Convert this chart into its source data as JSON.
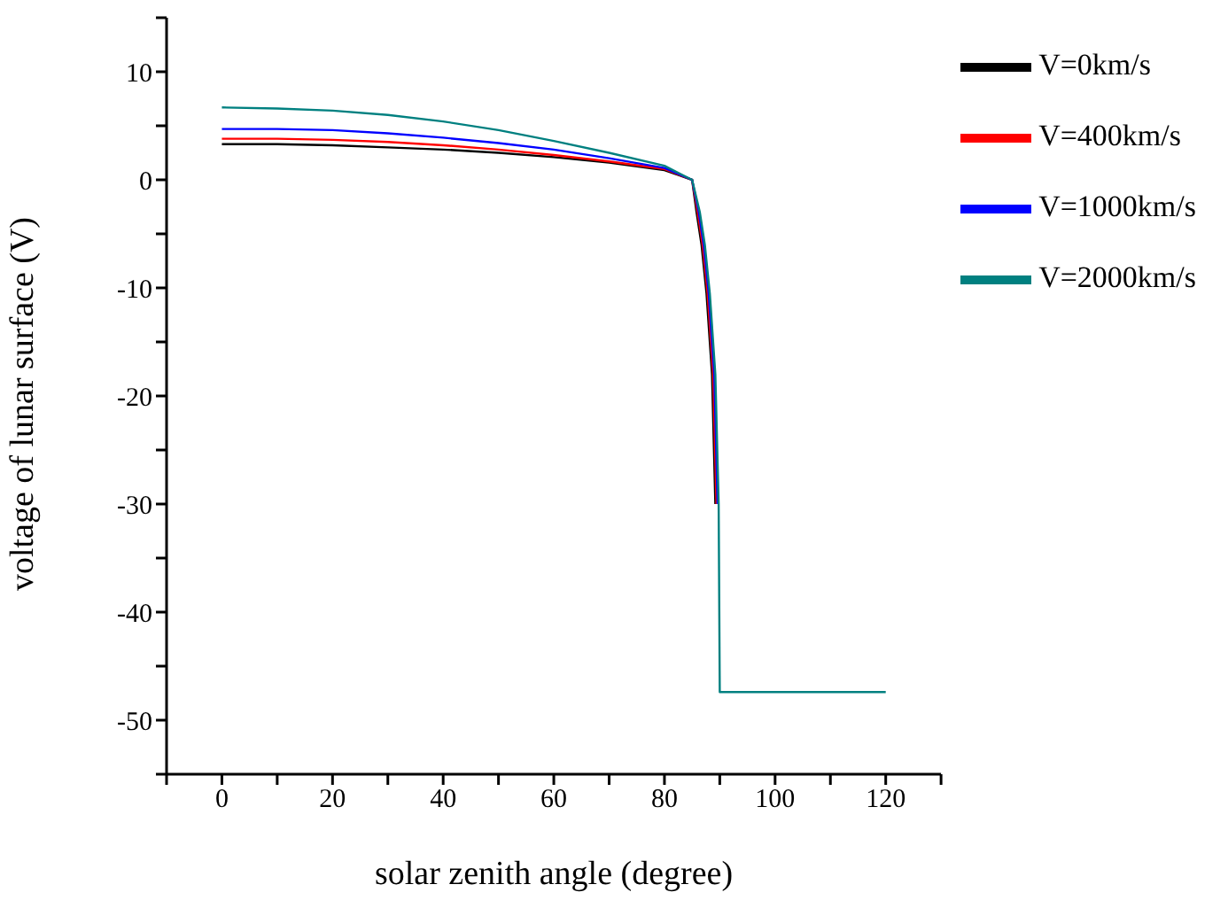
{
  "chart_data": {
    "type": "line",
    "xlabel": "solar zenith angle (degree)",
    "ylabel": "voltage of lunar surface (V)",
    "series": [
      {
        "name": "V=0km/s",
        "color": "#000000",
        "x": [
          0,
          10,
          20,
          30,
          40,
          50,
          60,
          70,
          80,
          85,
          85.8,
          86.7,
          87.6,
          88.6,
          89.2
        ],
        "values": [
          3.3,
          3.3,
          3.2,
          3.0,
          2.8,
          2.5,
          2.1,
          1.6,
          0.9,
          0,
          -3,
          -6,
          -10.5,
          -18,
          -30
        ]
      },
      {
        "name": "V=400km/s",
        "color": "#ff0000",
        "x": [
          0,
          10,
          20,
          30,
          40,
          50,
          60,
          70,
          80,
          85,
          86,
          86.9,
          87.8,
          88.8,
          89.4
        ],
        "values": [
          3.8,
          3.8,
          3.7,
          3.5,
          3.2,
          2.8,
          2.3,
          1.7,
          1.0,
          0,
          -3,
          -6,
          -10.5,
          -18,
          -30
        ]
      },
      {
        "name": "V=1000km/s",
        "color": "#0000ff",
        "x": [
          0,
          10,
          20,
          30,
          40,
          50,
          60,
          70,
          80,
          85,
          86.2,
          87.1,
          88,
          89,
          89.6
        ],
        "values": [
          4.7,
          4.7,
          4.6,
          4.3,
          3.9,
          3.4,
          2.8,
          2.0,
          1.1,
          0,
          -3,
          -6,
          -10.5,
          -18,
          -30
        ]
      },
      {
        "name": "V=2000km/s",
        "color": "#008080",
        "x": [
          0,
          10,
          20,
          30,
          40,
          50,
          60,
          70,
          80,
          85,
          86.4,
          87.3,
          88.2,
          89.2,
          89.8,
          90,
          120
        ],
        "values": [
          6.7,
          6.6,
          6.4,
          6.0,
          5.4,
          4.6,
          3.6,
          2.5,
          1.3,
          0,
          -3,
          -6,
          -10.5,
          -18,
          -30,
          -47.4,
          -47.4
        ]
      }
    ],
    "xlim": [
      -10,
      130
    ],
    "xticks": [
      {
        "value": -10,
        "label": null
      },
      0,
      {
        "value": 10,
        "label": null
      },
      20,
      {
        "value": 30,
        "label": null
      },
      40,
      {
        "value": 50,
        "label": null
      },
      60,
      {
        "value": 70,
        "label": null
      },
      80,
      {
        "value": 90,
        "label": null
      },
      100,
      {
        "value": 110,
        "label": null
      },
      120,
      {
        "value": 130,
        "label": null
      }
    ],
    "ylim": [
      -55,
      15
    ],
    "yticks": [
      {
        "value": -55,
        "label": null
      },
      -50,
      {
        "value": -45,
        "label": null
      },
      -40,
      {
        "value": -35,
        "label": null
      },
      -30,
      {
        "value": -25,
        "label": null
      },
      -20,
      {
        "value": -15,
        "label": null
      },
      -10,
      {
        "value": -5,
        "label": null
      },
      0,
      {
        "value": 5,
        "label": null
      },
      10,
      {
        "value": 15,
        "label": null
      }
    ],
    "grid": false,
    "legend": "top right",
    "marker": "none",
    "line_style": "solid"
  }
}
